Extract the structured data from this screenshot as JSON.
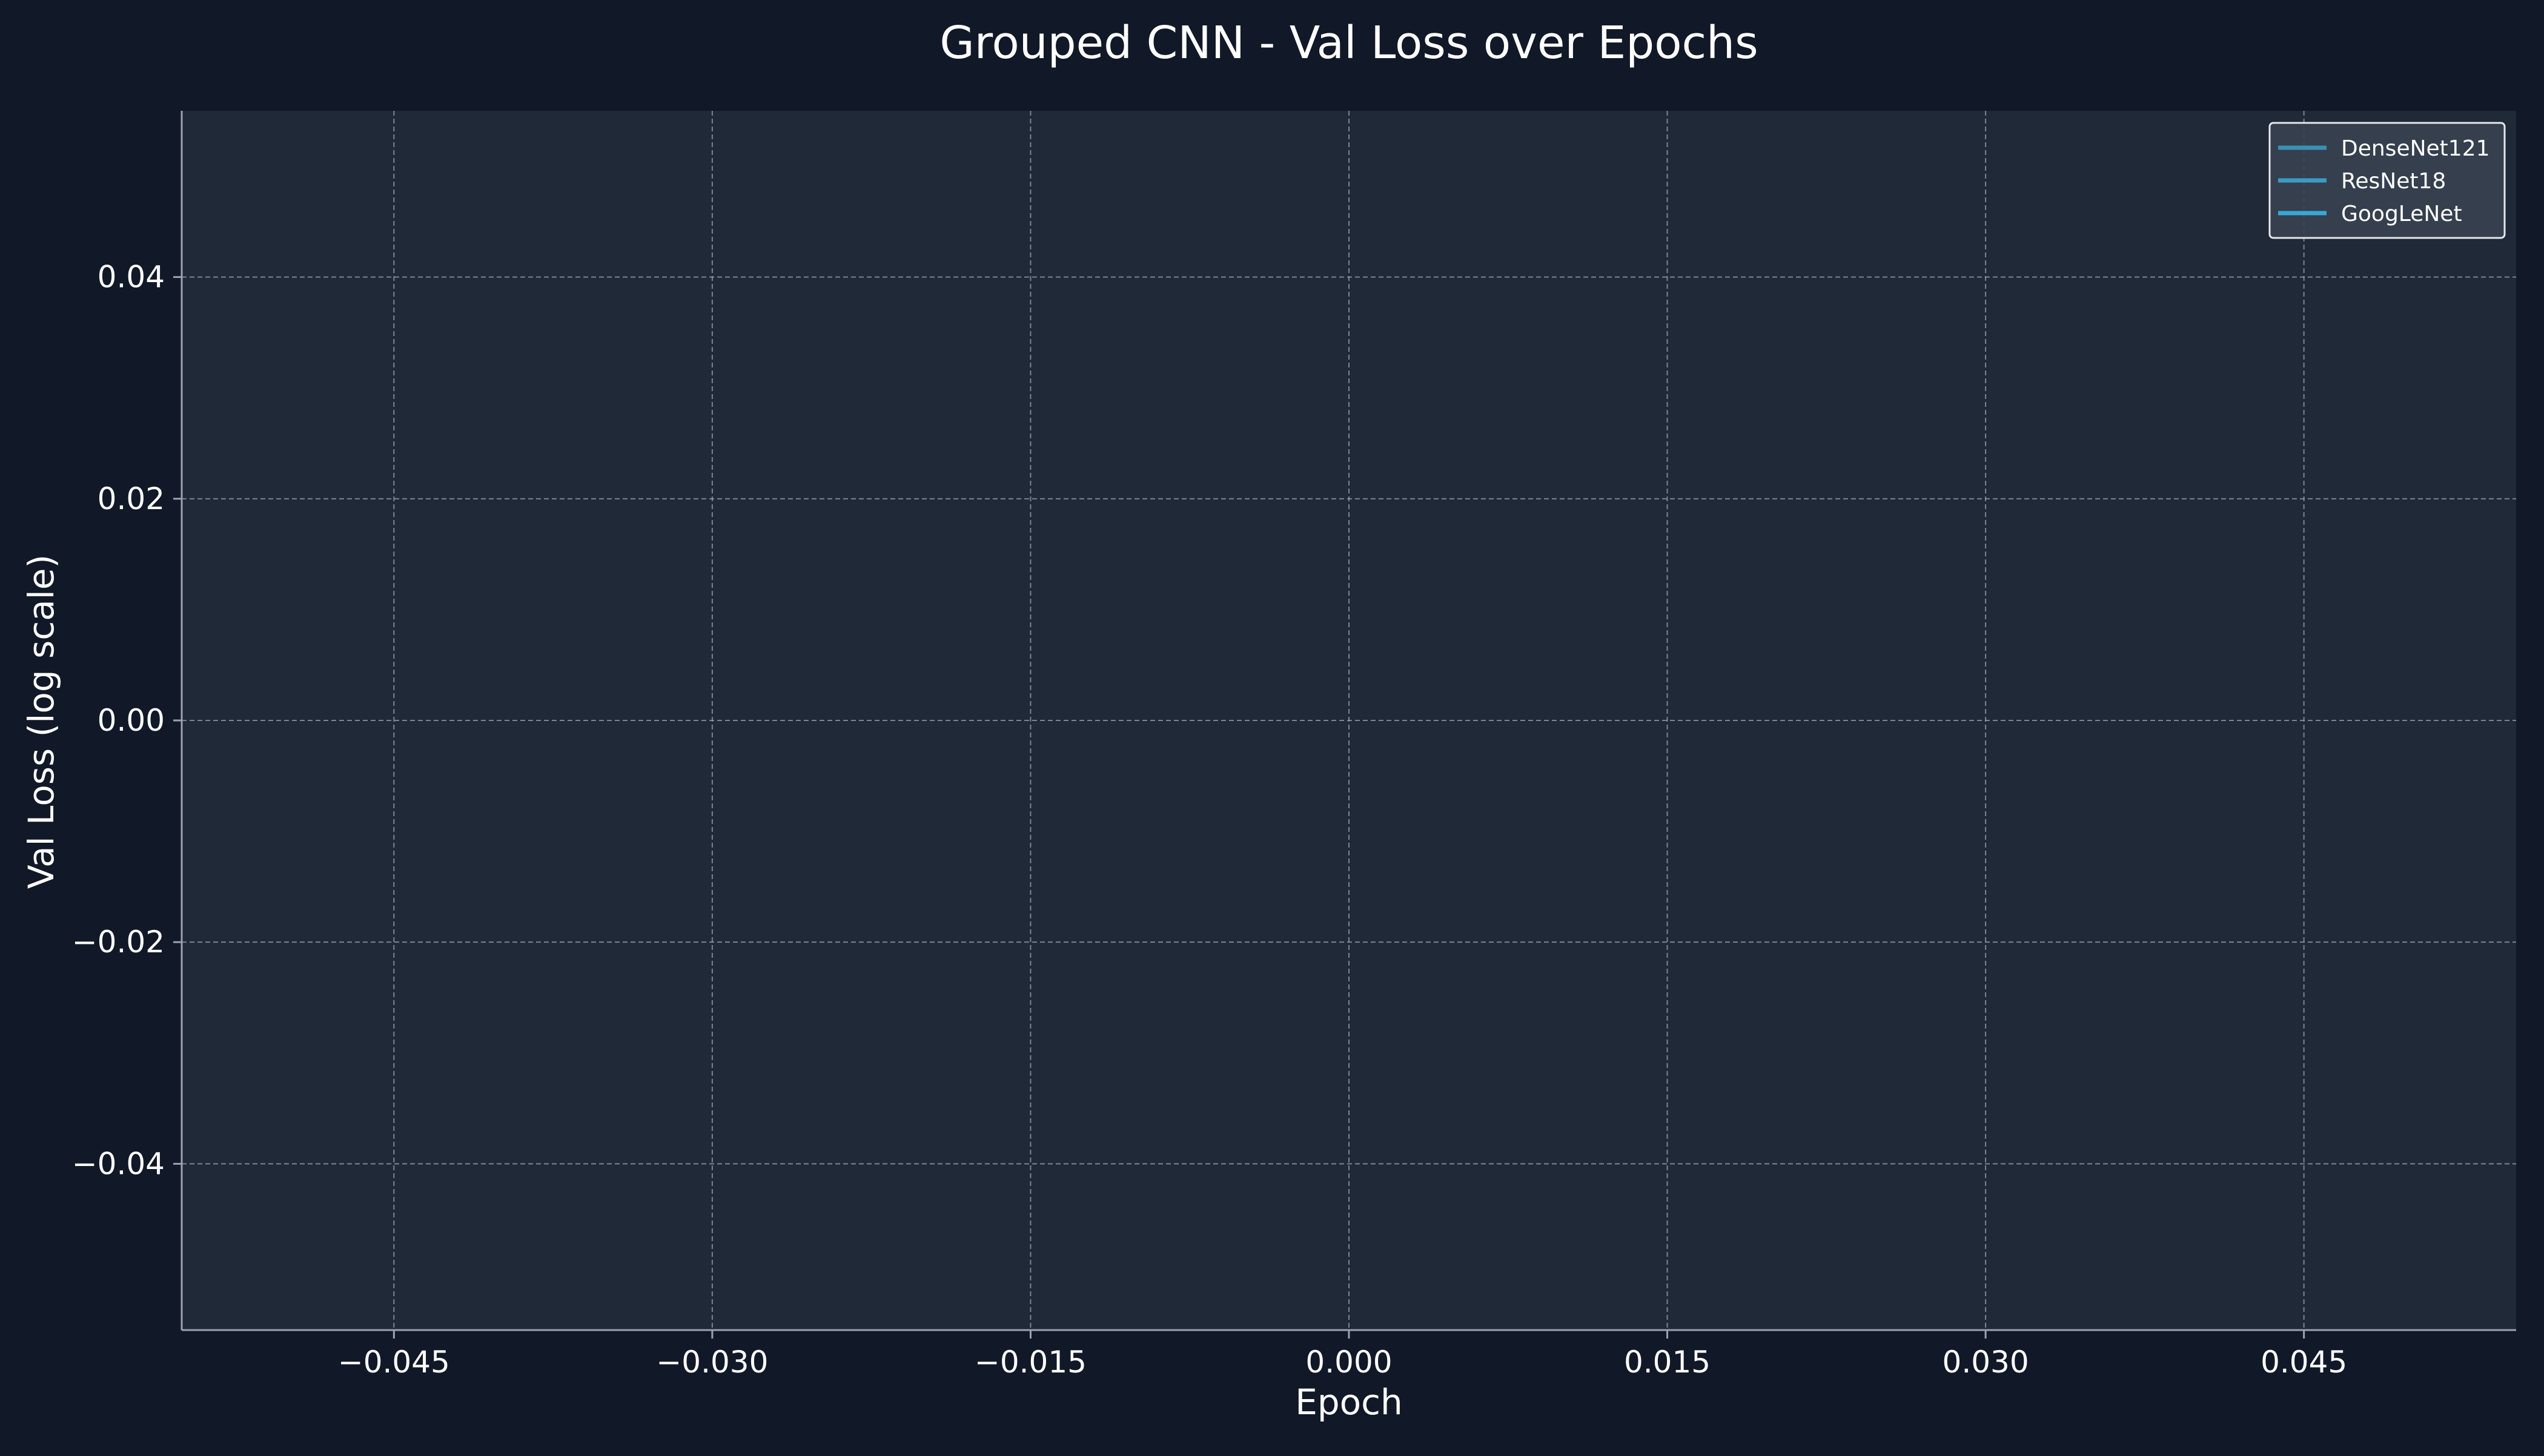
{
  "colors": {
    "page_background": "#111827",
    "plot_background": "#1f2937",
    "text": "#ffffff",
    "grid": "#9ca3af",
    "axis_spine": "#9ca3af",
    "legend_background": "#374151",
    "legend_border": "#e5e7eb"
  },
  "chart_data": {
    "type": "line",
    "title": "Grouped CNN - Val Loss over Epochs",
    "xlabel": "Epoch",
    "ylabel": "Val Loss (log scale)",
    "xlim": [
      -0.055,
      0.055
    ],
    "ylim": [
      -0.055,
      0.055
    ],
    "xticks": [
      -0.045,
      -0.03,
      -0.015,
      0.0,
      0.015,
      0.03,
      0.045
    ],
    "xtick_labels": [
      "−0.045",
      "−0.030",
      "−0.015",
      "0.000",
      "0.015",
      "0.030",
      "0.045"
    ],
    "yticks": [
      0.04,
      0.02,
      0.0,
      -0.02,
      -0.04
    ],
    "ytick_labels": [
      "0.04",
      "0.02",
      "0.00",
      "−0.02",
      "−0.04"
    ],
    "grid": true,
    "legend_position": "top-right",
    "series": [
      {
        "name": "DenseNet121",
        "color": "#3b8fb3",
        "x": [],
        "y": []
      },
      {
        "name": "ResNet18",
        "color": "#3b9bc4",
        "x": [],
        "y": []
      },
      {
        "name": "GoogLeNet",
        "color": "#38a8d6",
        "x": [],
        "y": []
      }
    ]
  }
}
